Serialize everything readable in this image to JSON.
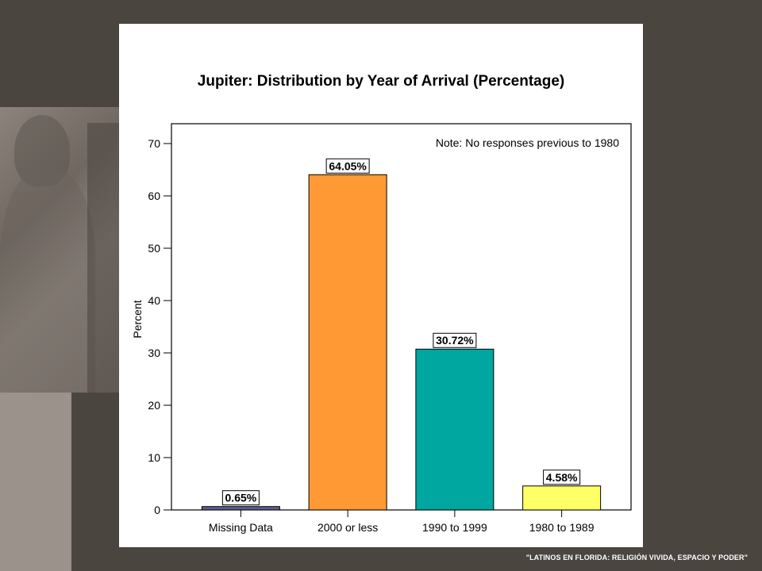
{
  "footer_text": "\"LATINOS EN FLORIDA: RELIGIÓN VIVIDA, ESPACIO Y PODER\"",
  "chart_data": {
    "type": "bar",
    "title": "Jupiter: Distribution by Year of Arrival (Percentage)",
    "ylabel": "Percent",
    "xlabel": "",
    "note": "Note: No responses previous to 1980",
    "ylim": [
      0,
      75
    ],
    "yticks": [
      0,
      10,
      20,
      30,
      40,
      50,
      60,
      70
    ],
    "categories": [
      "Missing Data",
      "2000 or less",
      "1990 to 1999",
      "1980 to 1989"
    ],
    "values": [
      0.65,
      64.05,
      30.72,
      4.58
    ],
    "data_labels": [
      "0.65%",
      "64.05%",
      "30.72%",
      "4.58%"
    ],
    "colors": [
      "#5a5f8f",
      "#ff9933",
      "#00a6a0",
      "#ffff66"
    ],
    "grid": false,
    "legend": "none"
  }
}
